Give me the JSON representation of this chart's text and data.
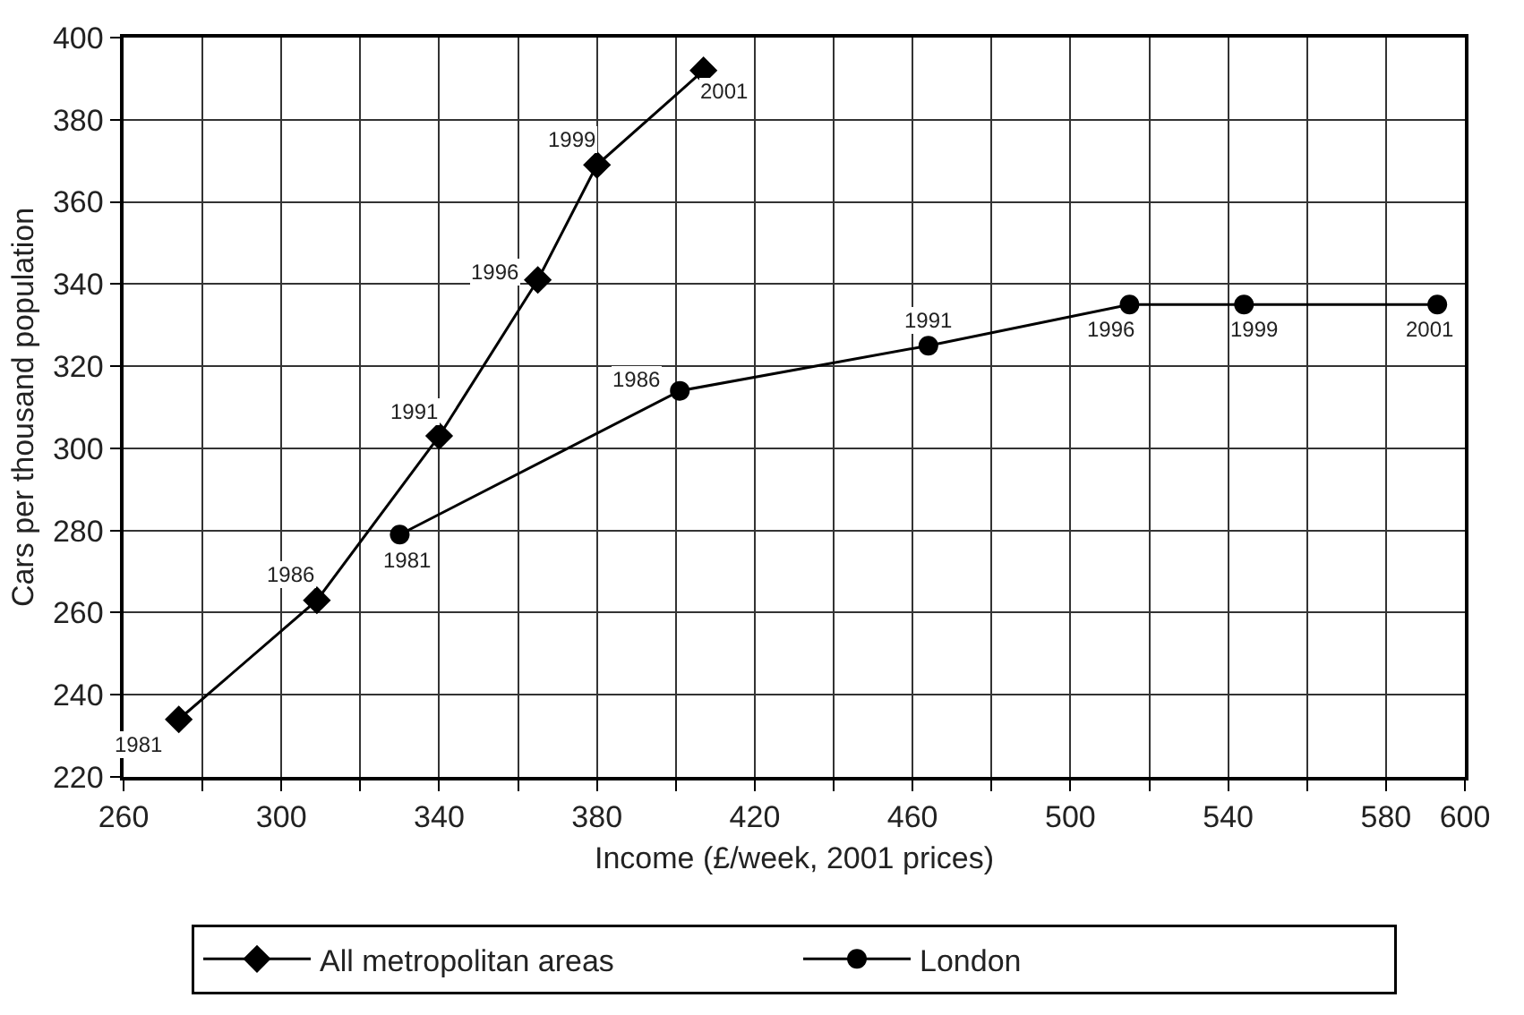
{
  "chart_data": {
    "type": "line",
    "xlabel": "Income (£/week, 2001 prices)",
    "ylabel": "Cars per thousand population",
    "xlim": [
      260,
      600
    ],
    "ylim": [
      220,
      400
    ],
    "xticks": [
      260,
      {
        "value": 280,
        "label": null
      },
      300,
      {
        "value": 320,
        "label": null
      },
      340,
      {
        "value": 360,
        "label": null
      },
      380,
      {
        "value": 400,
        "label": null
      },
      420,
      {
        "value": 440,
        "label": null
      },
      460,
      {
        "value": 480,
        "label": null
      },
      500,
      {
        "value": 520,
        "label": null
      },
      540,
      {
        "value": 560,
        "label": null
      },
      {
        "value": 580,
        "label": "580"
      },
      600
    ],
    "yticks": [
      220,
      240,
      260,
      280,
      300,
      320,
      340,
      360,
      380,
      400
    ],
    "grid": true,
    "legend": "bottom",
    "line_style": "solid",
    "series": [
      {
        "name": "All metropolitan areas",
        "color": "#000000",
        "marker": "diamond",
        "x": [
          274,
          309,
          340,
          365,
          380,
          407
        ],
        "values": [
          234,
          263,
          303,
          341,
          369,
          392
        ]
      },
      {
        "name": "London",
        "color": "#000000",
        "marker": "circle",
        "x": [
          330,
          401,
          464,
          515,
          544,
          593
        ],
        "values": [
          279,
          314,
          325,
          335,
          335,
          335
        ]
      }
    ],
    "annotations": [
      {
        "text": "1981",
        "x": 274,
        "y": 234
      },
      {
        "text": "1986",
        "x": 309,
        "y": 263
      },
      {
        "text": "1991",
        "x": 340,
        "y": 303
      },
      {
        "text": "1996",
        "x": 365,
        "y": 341
      },
      {
        "text": "1999",
        "x": 380,
        "y": 369
      },
      {
        "text": "2001",
        "x": 407,
        "y": 392
      },
      {
        "text": "1981",
        "x": 330,
        "y": 279
      },
      {
        "text": "1986",
        "x": 401,
        "y": 314
      },
      {
        "text": "1991",
        "x": 464,
        "y": 325
      },
      {
        "text": "1996",
        "x": 515,
        "y": 335
      },
      {
        "text": "1999",
        "x": 544,
        "y": 335
      },
      {
        "text": "2001",
        "x": 593,
        "y": 335
      }
    ]
  }
}
